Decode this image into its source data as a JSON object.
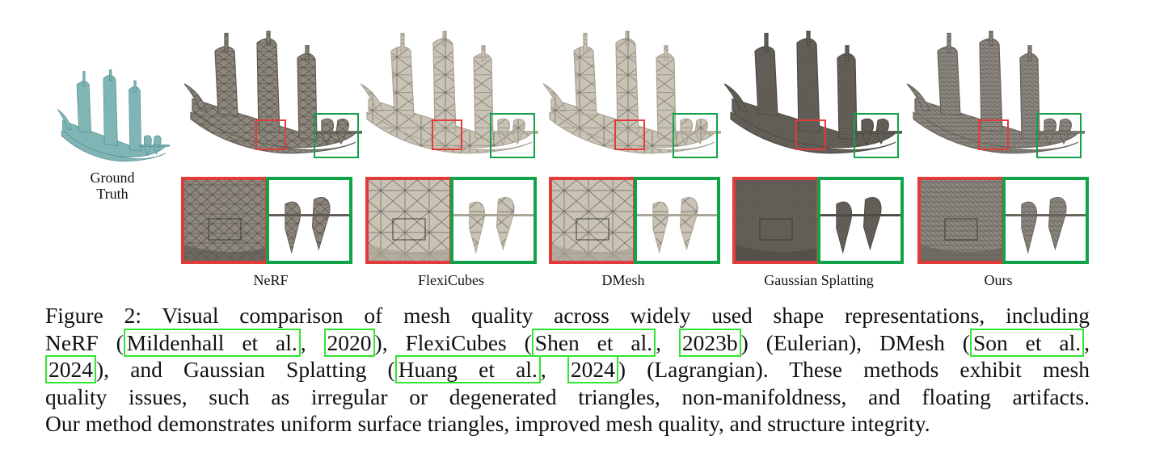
{
  "figure": {
    "ground_truth_label": [
      "Ground",
      "Truth"
    ],
    "methods": [
      {
        "name": "NeRF",
        "style": "coarse"
      },
      {
        "name": "FlexiCubes",
        "style": "light"
      },
      {
        "name": "DMesh",
        "style": "light"
      },
      {
        "name": "Gaussian Splatting",
        "style": "dense"
      },
      {
        "name": "Ours",
        "style": "uniform"
      }
    ],
    "colors": {
      "ground_truth": "#7fb5b5",
      "red_box": "#e23b3b",
      "green_box": "#12a24a",
      "citation_box": "#31e631"
    }
  },
  "caption": {
    "lines": [
      [
        {
          "t": "Figure 2: Visual comparison of mesh quality across widely used shape representations, including"
        }
      ],
      [
        {
          "t": "NeRF ("
        },
        {
          "c": "Mildenhall et al."
        },
        {
          "t": ", "
        },
        {
          "c": "2020"
        },
        {
          "t": "), FlexiCubes ("
        },
        {
          "c": "Shen et al."
        },
        {
          "t": ", "
        },
        {
          "c": "2023b"
        },
        {
          "t": ") (Eulerian), DMesh ("
        },
        {
          "c": "Son et al."
        },
        {
          "t": ","
        }
      ],
      [
        {
          "c": "2024"
        },
        {
          "t": "), and Gaussian Splatting ("
        },
        {
          "c": "Huang et al."
        },
        {
          "t": ", "
        },
        {
          "c": "2024"
        },
        {
          "t": ") (Lagrangian).  These methods exhibit mesh"
        }
      ],
      [
        {
          "t": "quality issues, such as irregular or degenerated triangles, non-manifoldness, and floating artifacts."
        }
      ],
      [
        {
          "t": "Our method demonstrates uniform surface triangles, improved mesh quality, and structure integrity."
        }
      ]
    ]
  }
}
